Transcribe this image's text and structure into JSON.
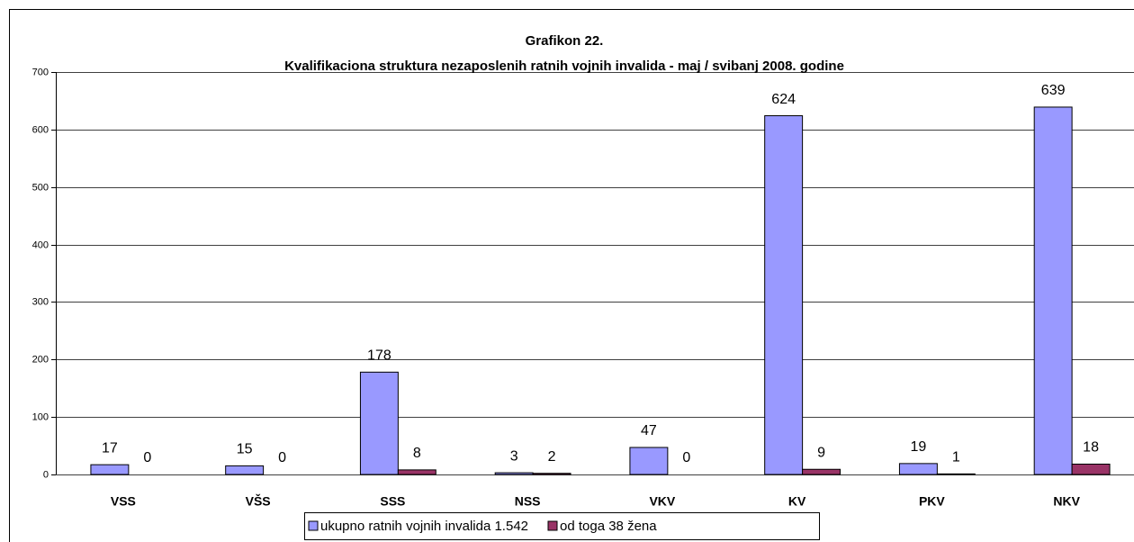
{
  "chart_data": {
    "type": "bar",
    "title": "Grafikon 22.",
    "subtitle": "Kvalifikaciona struktura nezaposlenih ratnih vojnih invalida - maj / svibanj  2008. godine",
    "categories": [
      "VSS",
      "VŠS",
      "SSS",
      "NSS",
      "VKV",
      "KV",
      "PKV",
      "NKV"
    ],
    "series": [
      {
        "name": "ukupno ratnih vojnih invalida 1.542",
        "color": "#9999ff",
        "values": [
          17,
          15,
          178,
          3,
          47,
          624,
          19,
          639
        ]
      },
      {
        "name": "od toga 38 žena",
        "color": "#993366",
        "values": [
          0,
          0,
          8,
          2,
          0,
          9,
          1,
          18
        ]
      }
    ],
    "ylim": [
      0,
      700
    ],
    "yticks": [
      0,
      100,
      200,
      300,
      400,
      500,
      600,
      700
    ],
    "grid": true,
    "legend": "bottom"
  }
}
